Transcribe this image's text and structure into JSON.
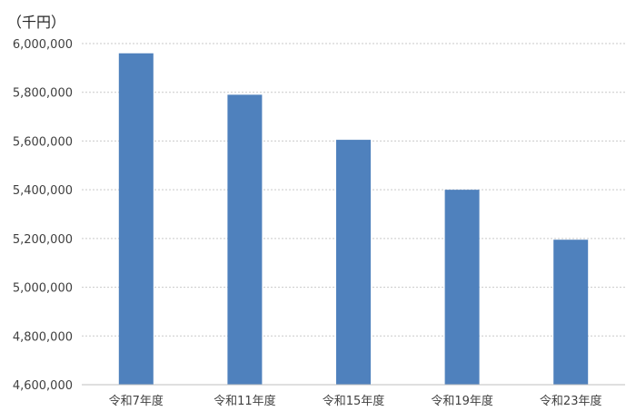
{
  "chart_data": {
    "type": "bar",
    "unit_label": "（千円）",
    "categories": [
      "令和7年度",
      "令和11年度",
      "令和15年度",
      "令和19年度",
      "令和23年度"
    ],
    "values": [
      5960000,
      5790000,
      5605000,
      5400000,
      5195000
    ],
    "ylim": [
      4600000,
      6000000
    ],
    "yticks": [
      4600000,
      4800000,
      5000000,
      5200000,
      5400000,
      5600000,
      5800000,
      6000000
    ],
    "ytick_labels": [
      "4,600,000",
      "4,800,000",
      "5,000,000",
      "5,200,000",
      "5,400,000",
      "5,600,000",
      "5,800,000",
      "6,000,000"
    ],
    "bar_color": "#4f81bd",
    "grid": true,
    "legend": false
  }
}
